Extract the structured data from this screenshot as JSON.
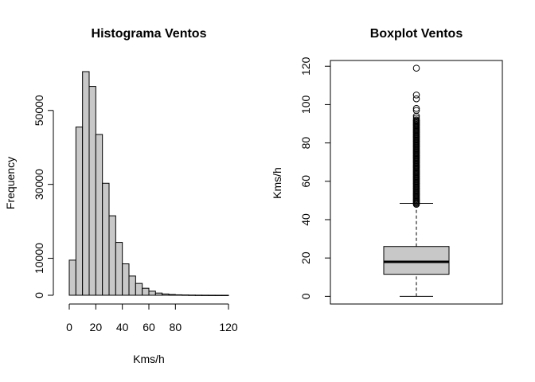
{
  "chart_data": [
    {
      "type": "bar",
      "title": "Histograma Ventos",
      "xlabel": "Kms/h",
      "ylabel": "Frequency",
      "bin_width": 5,
      "bins_start": [
        0,
        5,
        10,
        15,
        20,
        25,
        30,
        35,
        40,
        45,
        50,
        55,
        60,
        65,
        70,
        75,
        80,
        85,
        90,
        95,
        100,
        105,
        110,
        115
      ],
      "values": [
        9500,
        45500,
        60500,
        56500,
        43500,
        30300,
        21500,
        14300,
        8500,
        5200,
        3200,
        1900,
        1100,
        600,
        350,
        200,
        120,
        80,
        50,
        30,
        20,
        10,
        5,
        5
      ],
      "xlim": [
        0,
        120
      ],
      "ylim": [
        0,
        60500
      ],
      "x_ticks": [
        0,
        20,
        40,
        60,
        80,
        120
      ],
      "x_tick_labels": [
        "0",
        "20",
        "40",
        "60",
        "80",
        "120"
      ],
      "y_ticks": [
        0,
        10000,
        30000,
        50000
      ],
      "y_tick_labels": [
        "0",
        "10000",
        "30000",
        "50000"
      ],
      "bar_fill": "#c8c8c8"
    },
    {
      "type": "boxplot",
      "title": "Boxplot Ventos",
      "xlabel": "",
      "ylabel": "Kms/h",
      "ylim": [
        -4,
        123
      ],
      "y_ticks": [
        0,
        20,
        40,
        60,
        80,
        100,
        120
      ],
      "y_tick_labels": [
        "0",
        "20",
        "40",
        "60",
        "80",
        "100",
        "120"
      ],
      "whisker_low": 0,
      "q1": 11.5,
      "median": 18,
      "q3": 26,
      "whisker_high": 48.5,
      "outliers": [
        48,
        48.5,
        49,
        49.5,
        50,
        50.5,
        51,
        51.5,
        52,
        52.5,
        53,
        53.5,
        54,
        54.5,
        55,
        55.5,
        56,
        56.5,
        57,
        57.5,
        58,
        58.5,
        59,
        59.5,
        60,
        60.5,
        61,
        61.5,
        62,
        62.5,
        63,
        63.5,
        64,
        64.5,
        65,
        65.5,
        66,
        66.5,
        67,
        67.5,
        68,
        68.5,
        69,
        69.5,
        70,
        70.5,
        71,
        71.5,
        72,
        72.5,
        73,
        73.5,
        74,
        74.5,
        75,
        75.5,
        76,
        76.5,
        77,
        77.5,
        78,
        78.5,
        79,
        79.5,
        80,
        80.5,
        81,
        81.5,
        82,
        82.5,
        83,
        83.5,
        84,
        84.5,
        85,
        85.5,
        86,
        86.5,
        87,
        87.5,
        88,
        88.5,
        89,
        89.5,
        90,
        90.5,
        91,
        91.5,
        92,
        93,
        94,
        97,
        98,
        103,
        105,
        119
      ],
      "box_fill": "#c8c8c8"
    }
  ]
}
